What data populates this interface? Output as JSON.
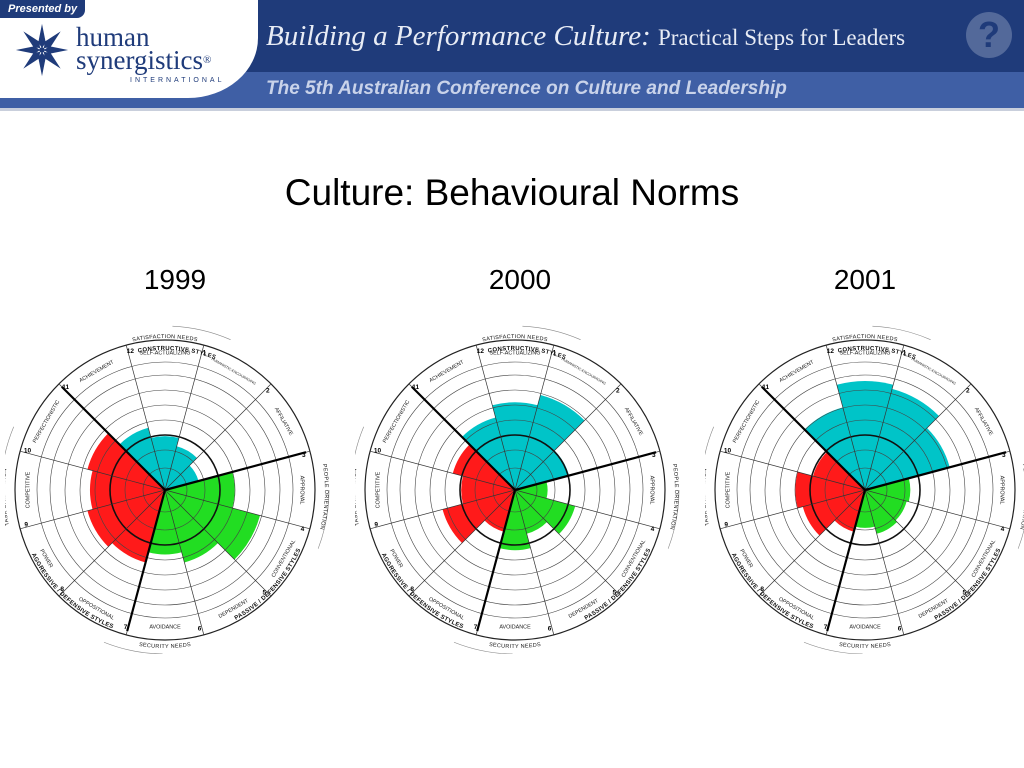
{
  "header": {
    "presented_by": "Presented by",
    "logo_line1": "human",
    "logo_line2": "synergistics",
    "logo_registered": "®",
    "logo_line3": "INTERNATIONAL",
    "title": "Building a Performance Culture:",
    "title_rest": "Practical Steps for Leaders",
    "subtitle": "The 5th Australian Conference on Culture and Leadership",
    "help_glyph": "?",
    "colors": {
      "navy": "#1f3b7a",
      "band": "#3f5fa5"
    }
  },
  "slide_title": "Culture: Behavioural Norms",
  "circumplex_labels": {
    "satisfaction": "SATISFACTION NEEDS",
    "security": "SECURITY NEEDS",
    "constructive": "CONSTRUCTIVE STYLES",
    "passive": "PASSIVE / DEFENSIVE STYLES",
    "aggressive": "AGGRESSIVE / DEFENSIVE STYLES",
    "people": "PEOPLE ORIENTATION",
    "task": "TASK ORIENTATION",
    "styles": [
      "SELF-ACTUALIZING",
      "HUMANISTIC-ENCOURAGING",
      "AFFILIATIVE",
      "APPROVAL",
      "CONVENTIONAL",
      "DEPENDENT",
      "AVOIDANCE",
      "OPPOSITIONAL",
      "POWER",
      "COMPETITIVE",
      "PERFECTIONISTIC",
      "ACHIEVEMENT"
    ],
    "numbers": [
      "12",
      "1",
      "2",
      "3",
      "4",
      "5",
      "6",
      "7",
      "8",
      "9",
      "10",
      "11"
    ]
  },
  "chart_data": [
    {
      "type": "polar-bar",
      "title": "1999",
      "categories": [
        "Self-Actualizing",
        "Humanistic-Encouraging",
        "Affiliative",
        "Approval",
        "Conventional",
        "Dependent",
        "Avoidance",
        "Oppositional",
        "Power",
        "Competitive",
        "Perfectionistic",
        "Achievement"
      ],
      "values": [
        0.3,
        0.22,
        0.12,
        0.45,
        0.72,
        0.5,
        0.4,
        0.5,
        0.55,
        0.5,
        0.55,
        0.4
      ],
      "scale": [
        0,
        1
      ],
      "colors": {
        "constructive": "#00c4c8",
        "passive": "#22dd22",
        "aggressive": "#ff1a1a"
      }
    },
    {
      "type": "polar-bar",
      "title": "2000",
      "categories": [
        "Self-Actualizing",
        "Humanistic-Encouraging",
        "Affiliative",
        "Approval",
        "Conventional",
        "Dependent",
        "Avoidance",
        "Oppositional",
        "Power",
        "Competitive",
        "Perfectionistic",
        "Achievement"
      ],
      "values": [
        0.62,
        0.72,
        0.32,
        0.1,
        0.38,
        0.22,
        0.36,
        0.2,
        0.5,
        0.3,
        0.4,
        0.5
      ],
      "scale": [
        0,
        1
      ],
      "colors": {
        "constructive": "#00c4c8",
        "passive": "#22dd22",
        "aggressive": "#ff1a1a"
      }
    },
    {
      "type": "polar-bar",
      "title": "2001",
      "categories": [
        "Self-Actualizing",
        "Humanistic-Encouraging",
        "Affiliative",
        "Approval",
        "Conventional",
        "Dependent",
        "Avoidance",
        "Oppositional",
        "Power",
        "Competitive",
        "Perfectionistic",
        "Achievement"
      ],
      "values": [
        0.82,
        0.78,
        0.62,
        0.22,
        0.2,
        0.22,
        0.15,
        0.2,
        0.4,
        0.45,
        0.3,
        0.6
      ],
      "scale": [
        0,
        1
      ],
      "colors": {
        "constructive": "#00c4c8",
        "passive": "#22dd22",
        "aggressive": "#ff1a1a"
      }
    }
  ]
}
